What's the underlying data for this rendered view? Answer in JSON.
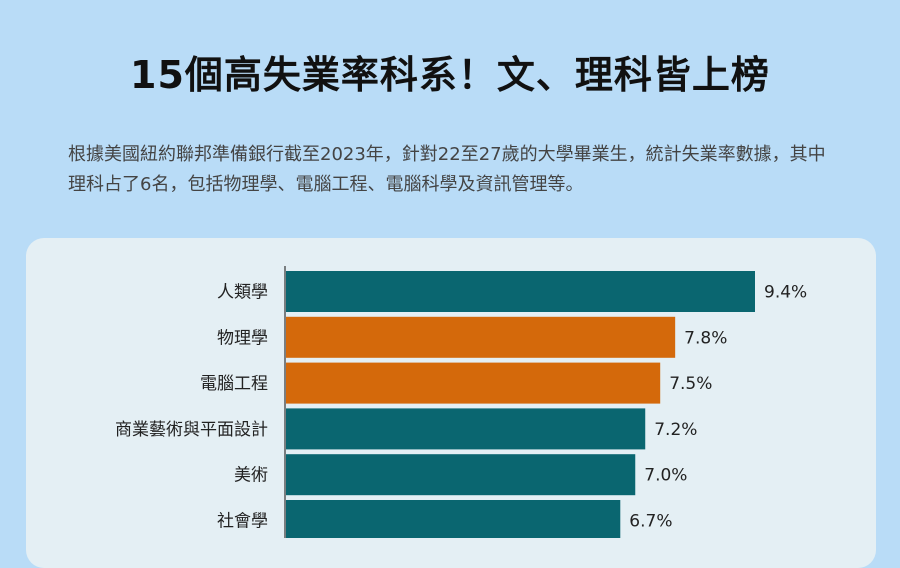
{
  "header": {
    "title": "15個高失業率科系！文、理科皆上榜",
    "subtitle": "根據美國紐約聯邦準備銀行截至2023年，針對22至27歲的大學畢業生，統計失業率數據，其中理科占了6名，包括物理學、電腦工程、電腦科學及資訊管理等。"
  },
  "colors": {
    "teal": "#0a6670",
    "orange": "#d4690b",
    "background": "#b9dcf7",
    "panel": "#e4eff4"
  },
  "chart_data": {
    "type": "bar",
    "orientation": "horizontal",
    "categories": [
      "人類學",
      "物理學",
      "電腦工程",
      "商業藝術與平面設計",
      "美術",
      "社會學"
    ],
    "values": [
      9.4,
      7.8,
      7.5,
      7.2,
      7.0,
      6.7
    ],
    "value_labels": [
      "9.4%",
      "7.8%",
      "7.5%",
      "7.2%",
      "7.0%",
      "6.7%"
    ],
    "highlight": [
      false,
      true,
      true,
      false,
      false,
      false
    ],
    "xlim": [
      0,
      9.4
    ],
    "unit": "%"
  }
}
